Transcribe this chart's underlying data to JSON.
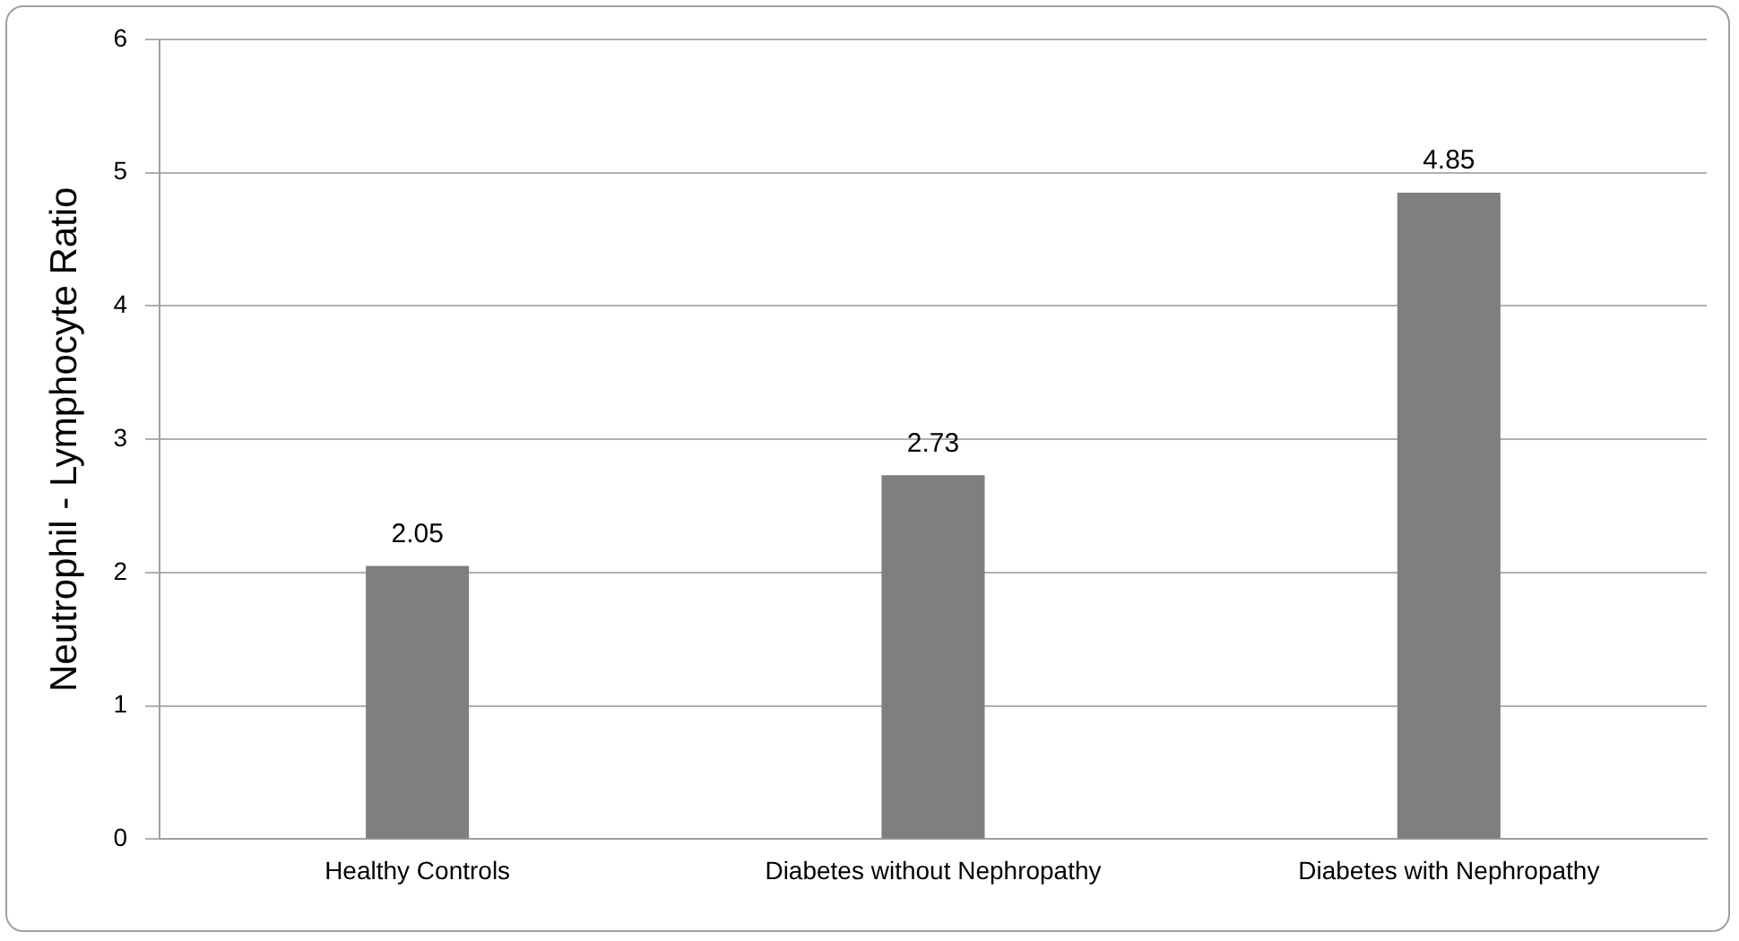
{
  "chart_data": {
    "type": "bar",
    "ylabel": "Neutrophil - Lymphocyte Ratio",
    "categories": [
      "Healthy Controls",
      "Diabetes without Nephropathy",
      "Diabetes with Nephropathy"
    ],
    "values": [
      2.05,
      2.73,
      4.85
    ],
    "color": "#7f7f7f",
    "ylim": [
      0,
      6
    ],
    "yticks": [
      0,
      1,
      2,
      3,
      4,
      5,
      6
    ],
    "grid": "y",
    "data_labels": true
  }
}
